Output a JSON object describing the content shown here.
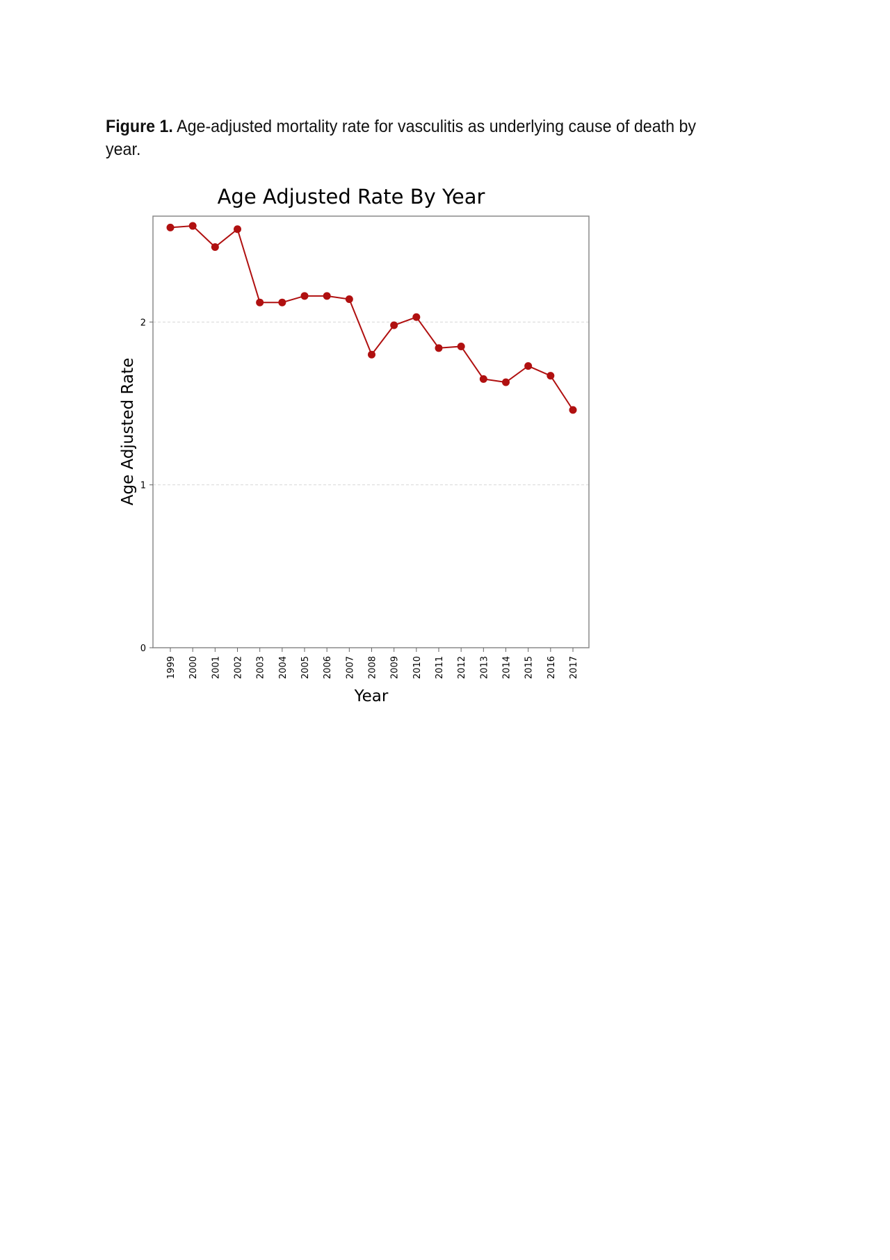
{
  "caption": {
    "label": "Figure 1.",
    "text": " Age-adjusted mortality rate for vasculitis as underlying cause of death by year."
  },
  "chart_data": {
    "type": "line",
    "title": "Age Adjusted Rate By Year",
    "xlabel": "Year",
    "ylabel": "Age Adjusted Rate",
    "categories": [
      "1999",
      "2000",
      "2001",
      "2002",
      "2003",
      "2004",
      "2005",
      "2006",
      "2007",
      "2008",
      "2009",
      "2010",
      "2011",
      "2012",
      "2013",
      "2014",
      "2015",
      "2016",
      "2017"
    ],
    "series": [
      {
        "values": [
          2.58,
          2.59,
          2.46,
          2.57,
          2.12,
          2.12,
          2.16,
          2.16,
          2.14,
          1.8,
          1.98,
          2.03,
          1.84,
          1.85,
          1.65,
          1.63,
          1.73,
          1.67,
          1.46
        ],
        "color": "#b01010"
      }
    ],
    "yticks": [
      0,
      1,
      2
    ],
    "ylim": [
      0,
      2.65
    ],
    "grid": "horizontal-dashed",
    "line_color": "#b01010",
    "marker_color": "#b01010"
  }
}
